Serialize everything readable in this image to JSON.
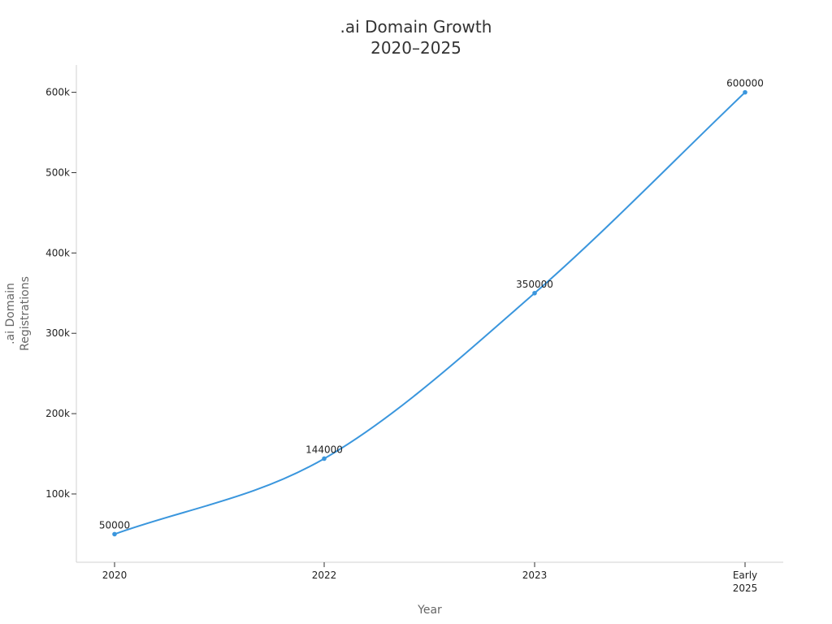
{
  "chart_data": {
    "type": "line",
    "title_lines": [
      ".ai Domain Growth",
      "2020–2025"
    ],
    "xlabel": "Year",
    "ylabel_lines": [
      ".ai Domain",
      "Registrations"
    ],
    "categories": [
      [
        "2020"
      ],
      [
        "2022"
      ],
      [
        "2023"
      ],
      [
        "Early",
        "2025"
      ]
    ],
    "series": [
      {
        "values": [
          50000,
          144000,
          350000,
          600000
        ],
        "color": "#3a96dd"
      }
    ],
    "data_labels": [
      "50000",
      "144000",
      "350000",
      "600000"
    ],
    "yticks": [
      100000,
      200000,
      300000,
      400000,
      500000,
      600000
    ],
    "ytick_labels": [
      "100k",
      "200k",
      "300k",
      "400k",
      "500k",
      "600k"
    ],
    "ylim": [
      15000,
      634000
    ],
    "grid": false,
    "legend": "none",
    "line_style": "smooth"
  }
}
